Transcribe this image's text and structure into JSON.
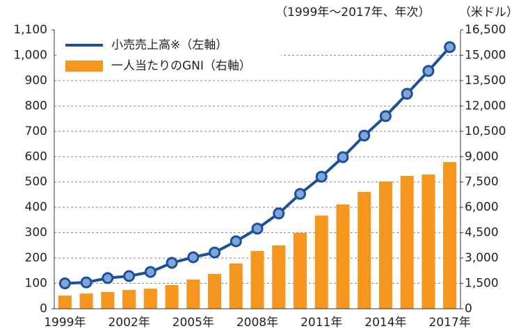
{
  "chart_data": {
    "type": "bar_line",
    "annotations": [
      "（1999年～2017年、年次）",
      "（米ドル）"
    ],
    "categories": [
      "1999年",
      null,
      null,
      "2002年",
      null,
      null,
      "2005年",
      null,
      null,
      "2008年",
      null,
      null,
      "2011年",
      null,
      null,
      "2014年",
      null,
      null,
      "2017年"
    ],
    "series": [
      {
        "name": "小売売上高※（左軸）",
        "type": "line",
        "axis": "y",
        "color": "#1c4f9c",
        "marker_color": "#7fa6d9",
        "values": [
          100,
          104,
          121,
          129,
          145,
          181,
          203,
          222,
          266,
          316,
          376,
          453,
          521,
          598,
          683,
          760,
          848,
          938,
          1032
        ]
      },
      {
        "name": "一人当たりのGNI（右軸）",
        "type": "bar",
        "axis": "y2",
        "color": "#f5961e",
        "values": [
          780,
          900,
          990,
          1110,
          1190,
          1400,
          1730,
          2060,
          2680,
          3420,
          3750,
          4490,
          5510,
          6170,
          6910,
          7530,
          7860,
          7940,
          8680
        ]
      }
    ],
    "ylim": [
      0,
      1100
    ],
    "yticks": [
      0,
      100,
      200,
      300,
      400,
      500,
      600,
      700,
      800,
      900,
      {
        "value": 1000,
        "label": "1,000"
      },
      {
        "value": 1100,
        "label": "1,100"
      }
    ],
    "y2lim": [
      0,
      16500
    ],
    "y2ticks": [
      0,
      {
        "value": 1500,
        "label": "1,500"
      },
      {
        "value": 3000,
        "label": "3,000"
      },
      {
        "value": 4500,
        "label": "4,500"
      },
      {
        "value": 6000,
        "label": "6,000"
      },
      {
        "value": 7500,
        "label": "7,500"
      },
      {
        "value": 9000,
        "label": "9,000"
      },
      {
        "value": 10500,
        "label": "10,500"
      },
      {
        "value": 12000,
        "label": "12,000"
      },
      {
        "value": 13500,
        "label": "13,500"
      },
      {
        "value": 15000,
        "label": "15,000"
      },
      {
        "value": 16500,
        "label": "16,500"
      }
    ],
    "grid": true,
    "legend": "top-left"
  }
}
